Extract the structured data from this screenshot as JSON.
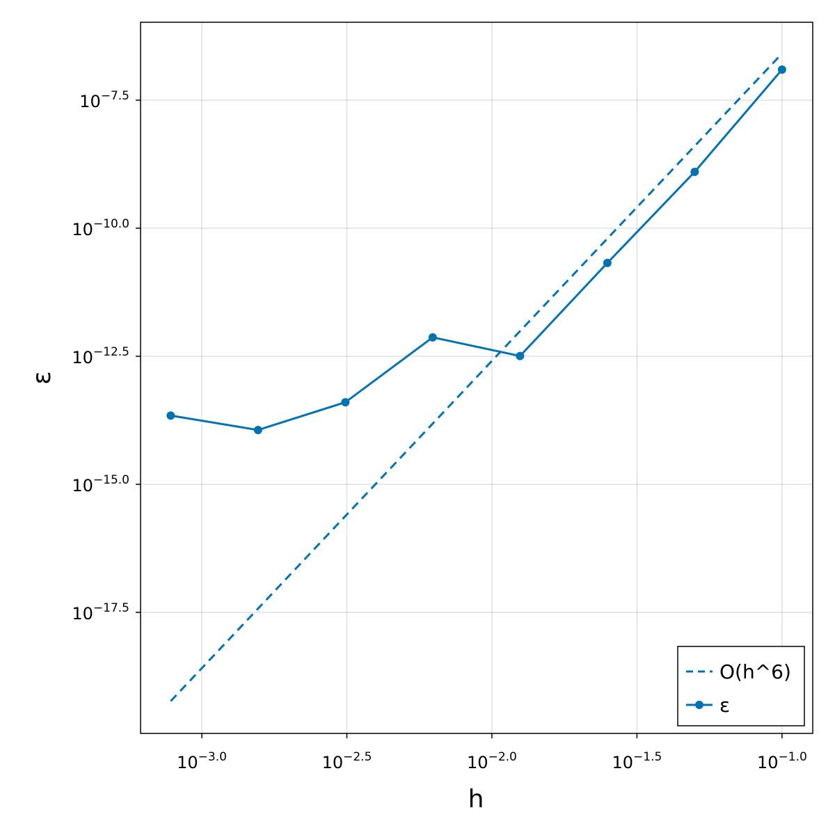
{
  "chart_data": {
    "type": "line",
    "xlabel": "h",
    "ylabel": "ε",
    "x": [
      0.00078125,
      0.0015625,
      0.003125,
      0.00625,
      0.0125,
      0.025,
      0.05,
      0.1
    ],
    "series": [
      {
        "name": "O(h^6)",
        "color": "#0072b2",
        "linestyle": "dash",
        "marker": false,
        "values": [
          5.85e-20,
          3.74e-18,
          2.4e-16,
          1.53e-14,
          9.8e-13,
          6.28e-11,
          4.02e-09,
          2.57e-07
        ]
      },
      {
        "name": "ε",
        "color": "#0072b2",
        "linestyle": "solid",
        "marker": true,
        "values": [
          2.2e-14,
          1.15e-14,
          4e-14,
          7.4e-13,
          3.2e-13,
          2.1e-11,
          1.26e-09,
          1.25e-07
        ]
      }
    ],
    "xscale": "log",
    "yscale": "log",
    "xlim": [
      0.000615,
      0.1276
    ],
    "ylim": [
      1.37e-20,
      1.05e-06
    ],
    "xticks": [
      {
        "value": 0.001,
        "label": "10−3.0"
      },
      {
        "value": 0.00316227766,
        "label": "10−2.5"
      },
      {
        "value": 0.01,
        "label": "10−2.0"
      },
      {
        "value": 0.0316227766,
        "label": "10−1.5"
      },
      {
        "value": 0.1,
        "label": "10−1.0"
      }
    ],
    "yticks": [
      {
        "value": 3.16227766e-08,
        "label": "10−7.5"
      },
      {
        "value": 1e-10,
        "label": "10−10.0"
      },
      {
        "value": 3.16227766e-13,
        "label": "10−12.5"
      },
      {
        "value": 1e-15,
        "label": "10−15.0"
      },
      {
        "value": 3.16227766e-18,
        "label": "10−17.5"
      }
    ],
    "grid": true,
    "legend": "bottom-right"
  }
}
